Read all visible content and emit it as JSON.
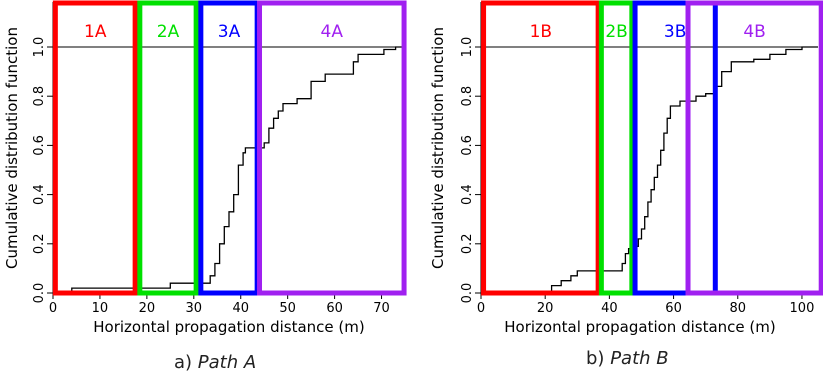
{
  "chart_data": [
    {
      "type": "line",
      "subtype": "step-cdf",
      "title": "",
      "caption_label": "a)",
      "caption_name": "Path A",
      "xlabel": "Horizontal propagation distance (m)",
      "ylabel": "Cumulative distribution function",
      "xlim": [
        0,
        75
      ],
      "ylim": [
        0,
        1.0
      ],
      "xticks": [
        0,
        10,
        20,
        30,
        40,
        50,
        60,
        70
      ],
      "yticks": [
        0.0,
        0.2,
        0.4,
        0.6,
        0.8,
        1.0
      ],
      "reference_line_y": 1.0,
      "grid": false,
      "series": [
        {
          "color": "#000000",
          "points": [
            [
              0,
              0
            ],
            [
              4,
              0
            ],
            [
              4,
              0.02
            ],
            [
              25,
              0.02
            ],
            [
              25,
              0.04
            ],
            [
              33,
              0.04
            ],
            [
              33.5,
              0.07
            ],
            [
              34.5,
              0.12
            ],
            [
              35.5,
              0.2
            ],
            [
              36.5,
              0.27
            ],
            [
              37.5,
              0.33
            ],
            [
              38.5,
              0.4
            ],
            [
              39.5,
              0.52
            ],
            [
              40.5,
              0.57
            ],
            [
              41,
              0.59
            ],
            [
              44,
              0.59
            ],
            [
              45,
              0.61
            ],
            [
              46,
              0.67
            ],
            [
              47,
              0.71
            ],
            [
              48,
              0.74
            ],
            [
              49,
              0.77
            ],
            [
              52,
              0.79
            ],
            [
              55,
              0.86
            ],
            [
              58,
              0.89
            ],
            [
              62,
              0.89
            ],
            [
              64,
              0.94
            ],
            [
              65,
              0.97
            ],
            [
              70,
              0.97
            ],
            [
              70.5,
              0.99
            ],
            [
              73,
              1.0
            ],
            [
              75,
              1.0
            ]
          ]
        }
      ],
      "regions": [
        {
          "label": "1A",
          "x0": 0.5,
          "x1": 17.5,
          "color": "#ff0000"
        },
        {
          "label": "2A",
          "x0": 18.5,
          "x1": 30.5,
          "color": "#00e000"
        },
        {
          "label": "3A",
          "x0": 31.5,
          "x1": 43.5,
          "color": "#0000ff"
        },
        {
          "label": "4A",
          "x0": 44,
          "x1": 74.8,
          "color": "#a020f0"
        }
      ]
    },
    {
      "type": "line",
      "subtype": "step-cdf",
      "title": "",
      "caption_label": "b)",
      "caption_name": "Path B",
      "xlabel": "Horizontal propagation distance (m)",
      "ylabel": "Cumulative distribution function",
      "xlim": [
        0,
        105
      ],
      "ylim": [
        0,
        1.0
      ],
      "xticks": [
        0,
        20,
        40,
        60,
        80,
        100
      ],
      "yticks": [
        0.0,
        0.2,
        0.4,
        0.6,
        0.8,
        1.0
      ],
      "reference_line_y": 1.0,
      "grid": false,
      "series": [
        {
          "color": "#000000",
          "points": [
            [
              0,
              0
            ],
            [
              20,
              0
            ],
            [
              22,
              0.03
            ],
            [
              25,
              0.05
            ],
            [
              28,
              0.07
            ],
            [
              30,
              0.09
            ],
            [
              43,
              0.09
            ],
            [
              44,
              0.12
            ],
            [
              45,
              0.16
            ],
            [
              46,
              0.18
            ],
            [
              48,
              0.19
            ],
            [
              49,
              0.22
            ],
            [
              50,
              0.26
            ],
            [
              51,
              0.31
            ],
            [
              52,
              0.37
            ],
            [
              53,
              0.42
            ],
            [
              54,
              0.47
            ],
            [
              55,
              0.52
            ],
            [
              56,
              0.58
            ],
            [
              57,
              0.65
            ],
            [
              58,
              0.71
            ],
            [
              59,
              0.76
            ],
            [
              62,
              0.78
            ],
            [
              67,
              0.8
            ],
            [
              70,
              0.81
            ],
            [
              73,
              0.84
            ],
            [
              75,
              0.9
            ],
            [
              78,
              0.94
            ],
            [
              85,
              0.95
            ],
            [
              90,
              0.97
            ],
            [
              95,
              0.99
            ],
            [
              100,
              1.0
            ],
            [
              105,
              1.0
            ]
          ]
        }
      ],
      "regions": [
        {
          "label": "1B",
          "x0": 0.8,
          "x1": 36.5,
          "color": "#ff0000"
        },
        {
          "label": "2B",
          "x0": 37.5,
          "x1": 47,
          "color": "#00e000"
        },
        {
          "label": "3B",
          "x0": 48,
          "x1": 73,
          "color": "#0000ff"
        },
        {
          "label": "4B",
          "x0": 64.5,
          "x1": 106,
          "color": "#a020f0"
        }
      ]
    }
  ]
}
